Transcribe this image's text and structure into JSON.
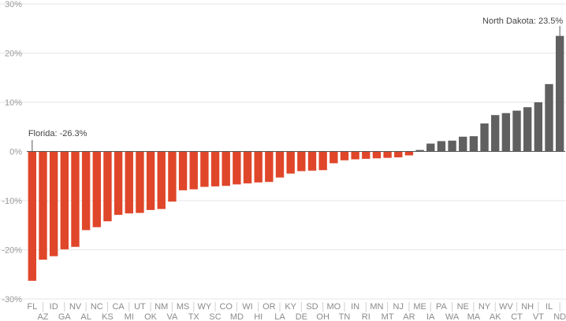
{
  "chart_data": {
    "type": "bar",
    "title": "",
    "xlabel": "",
    "ylabel": "",
    "ylim": [
      -30,
      30
    ],
    "y_ticks": [
      -30,
      -20,
      -10,
      0,
      10,
      20,
      30
    ],
    "y_tick_labels": [
      "-30%",
      "-20%",
      "-10%",
      "0%",
      "10%",
      "20%",
      "30%"
    ],
    "grid": true,
    "legend": "none",
    "colors": {
      "negative": "#e0462a",
      "positive": "#606060",
      "grid": "#e6e6e6",
      "zero_line": "#555555"
    },
    "categories": [
      "FL",
      "AZ",
      "ID",
      "GA",
      "NV",
      "AL",
      "NC",
      "KS",
      "CA",
      "MI",
      "UT",
      "OK",
      "NM",
      "VA",
      "MS",
      "TX",
      "WY",
      "SC",
      "CO",
      "MD",
      "WI",
      "HI",
      "OR",
      "LA",
      "KY",
      "DE",
      "SD",
      "OH",
      "MO",
      "TN",
      "IN",
      "RI",
      "MN",
      "MT",
      "NJ",
      "AR",
      "ME",
      "IA",
      "PA",
      "WA",
      "NE",
      "MA",
      "NY",
      "AK",
      "WV",
      "CT",
      "NH",
      "VT",
      "IL",
      "ND"
    ],
    "values": [
      -26.3,
      -22.0,
      -21.3,
      -19.9,
      -19.4,
      -16.0,
      -15.4,
      -14.2,
      -12.9,
      -12.6,
      -12.5,
      -11.9,
      -11.7,
      -10.2,
      -7.9,
      -7.7,
      -7.2,
      -7.1,
      -7.0,
      -6.7,
      -6.5,
      -6.3,
      -6.2,
      -5.3,
      -4.5,
      -4.0,
      -3.9,
      -3.8,
      -2.4,
      -1.8,
      -1.6,
      -1.5,
      -1.4,
      -1.3,
      -1.2,
      -0.8,
      0.3,
      1.6,
      2.1,
      2.2,
      3.0,
      3.1,
      5.7,
      7.4,
      7.8,
      8.3,
      9.0,
      10.0,
      13.7,
      23.5
    ],
    "annotations": [
      {
        "text": "Florida: -26.3%",
        "category": "FL"
      },
      {
        "text": "North Dakota: 23.5%",
        "category": "ND"
      }
    ]
  }
}
